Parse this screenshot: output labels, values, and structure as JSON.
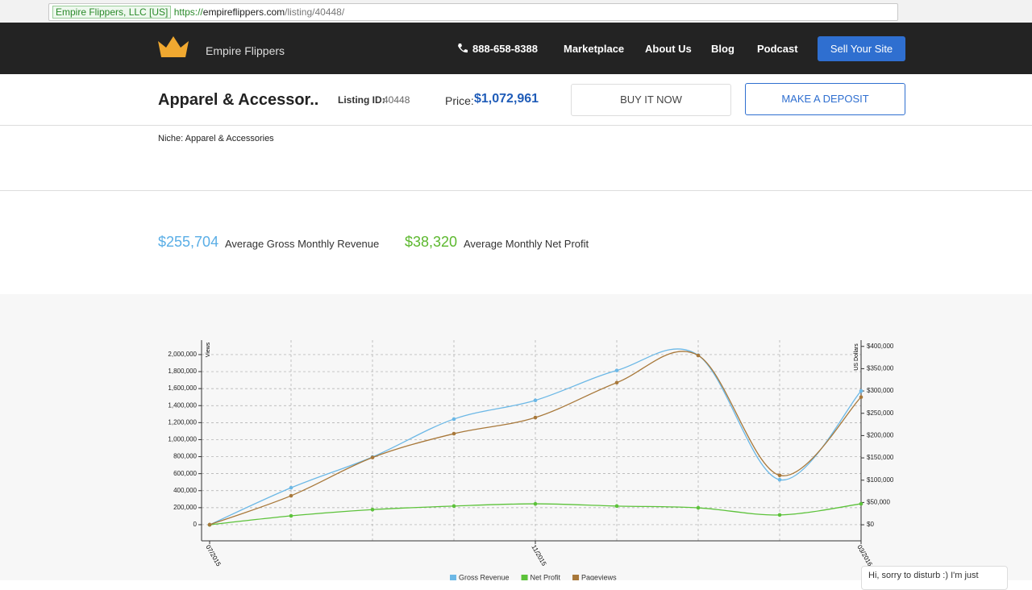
{
  "browser": {
    "site_identity": "Empire Flippers, LLC [US]",
    "url_scheme": "https://",
    "url_host": "empireflippers.com",
    "url_path": "/listing/40448/"
  },
  "nav": {
    "brand": "Empire Flippers",
    "phone": "888-658-8388",
    "links": [
      "Marketplace",
      "About Us",
      "Blog",
      "Podcast"
    ],
    "cta": "Sell Your Site"
  },
  "listing": {
    "title": "Apparel & Accessor..",
    "id_label": "Listing ID:",
    "id": "40448",
    "price_label": "Price:",
    "price": "$1,072,961",
    "buy": "BUY IT NOW",
    "deposit": "MAKE A DEPOSIT",
    "niche": "Niche: Apparel & Accessories"
  },
  "stats": [
    {
      "value": "$255,704",
      "label": "Average Gross Monthly Revenue"
    },
    {
      "value": "$38,320",
      "label": "Average Monthly Net Profit"
    }
  ],
  "chart_data": {
    "type": "line",
    "y_label": "Views",
    "y2_label": "US Dollars",
    "categories": [
      "07/2015",
      null,
      null,
      null,
      "11/2015",
      null,
      null,
      null,
      "03/2016"
    ],
    "series": [
      {
        "name": "Gross Revenue",
        "color": "#6cb8e6",
        "axis": "y2",
        "values": [
          0,
          83000,
          152000,
          237000,
          279000,
          346000,
          380000,
          101000,
          300000
        ]
      },
      {
        "name": "Net Profit",
        "color": "#5cc23a",
        "axis": "y2",
        "values": [
          0,
          20000,
          34000,
          42000,
          47000,
          42000,
          38000,
          22000,
          47000
        ]
      },
      {
        "name": "Pageviews",
        "color": "#a8783a",
        "values": [
          0,
          340000,
          790000,
          1070000,
          1260000,
          1670000,
          1990000,
          580000,
          1500000
        ]
      }
    ],
    "ylim": [
      -190000,
      2170000
    ],
    "yticks": [
      0,
      {
        "value": 200000,
        "label": "200,000"
      },
      {
        "value": 400000,
        "label": "400,000"
      },
      {
        "value": 600000,
        "label": "600,000"
      },
      {
        "value": 800000,
        "label": "800,000"
      },
      {
        "value": 1000000,
        "label": "1,000,000"
      },
      {
        "value": 1200000,
        "label": "1,200,000"
      },
      {
        "value": 1400000,
        "label": "1,400,000"
      },
      {
        "value": 1600000,
        "label": "1,600,000"
      },
      {
        "value": 1800000,
        "label": "1,800,000"
      },
      {
        "value": 2000000,
        "label": "2,000,000"
      }
    ],
    "y2lim": [
      -36000,
      414000
    ],
    "y2ticks": [
      {
        "value": 0,
        "label": "$0"
      },
      {
        "value": 50000,
        "label": "$50,000"
      },
      {
        "value": 100000,
        "label": "$100,000"
      },
      {
        "value": 150000,
        "label": "$150,000"
      },
      {
        "value": 200000,
        "label": "$200,000"
      },
      {
        "value": 250000,
        "label": "$250,000"
      },
      {
        "value": 300000,
        "label": "$300,000"
      },
      {
        "value": 350000,
        "label": "$350,000"
      },
      {
        "value": 400000,
        "label": "$400,000"
      }
    ],
    "grid": true,
    "legend": "bottom"
  },
  "chat": "Hi, sorry to disturb :) I'm just"
}
